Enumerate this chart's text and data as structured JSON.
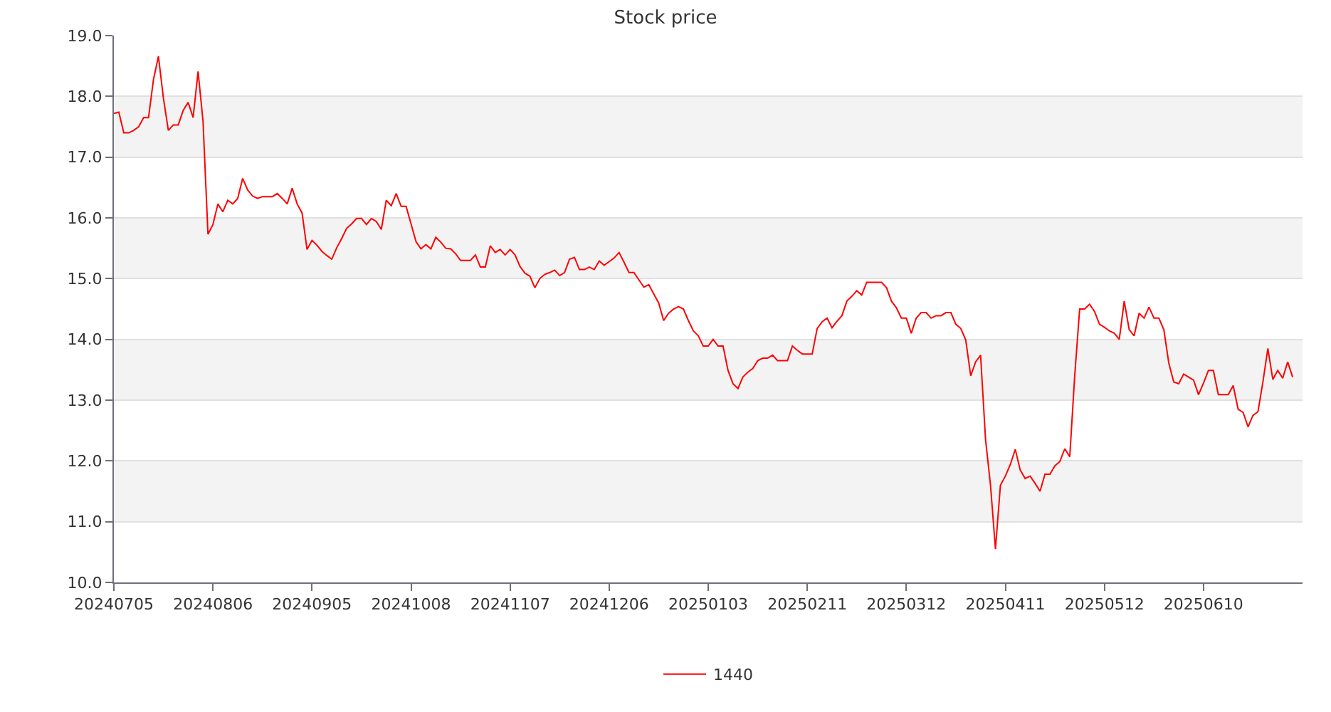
{
  "chart_data": {
    "type": "line",
    "title": "Stock price",
    "categories": [
      "20240705",
      null,
      null,
      null,
      null,
      null,
      null,
      null,
      null,
      null,
      null,
      null,
      null,
      null,
      null,
      null,
      null,
      null,
      null,
      null,
      "20240806",
      null,
      null,
      null,
      null,
      null,
      null,
      null,
      null,
      null,
      null,
      null,
      null,
      null,
      null,
      null,
      null,
      null,
      null,
      null,
      "20240905",
      null,
      null,
      null,
      null,
      null,
      null,
      null,
      null,
      null,
      null,
      null,
      null,
      null,
      null,
      null,
      null,
      null,
      null,
      null,
      "20241008",
      null,
      null,
      null,
      null,
      null,
      null,
      null,
      null,
      null,
      null,
      null,
      null,
      null,
      null,
      null,
      null,
      null,
      null,
      null,
      "20241107",
      null,
      null,
      null,
      null,
      null,
      null,
      null,
      null,
      null,
      null,
      null,
      null,
      null,
      null,
      null,
      null,
      null,
      null,
      null,
      "20241206",
      null,
      null,
      null,
      null,
      null,
      null,
      null,
      null,
      null,
      null,
      null,
      null,
      null,
      null,
      null,
      null,
      null,
      null,
      null,
      "20250103",
      null,
      null,
      null,
      null,
      null,
      null,
      null,
      null,
      null,
      null,
      null,
      null,
      null,
      null,
      null,
      null,
      null,
      null,
      null,
      "20250211",
      null,
      null,
      null,
      null,
      null,
      null,
      null,
      null,
      null,
      null,
      null,
      null,
      null,
      null,
      null,
      null,
      null,
      null,
      null,
      "20250312",
      null,
      null,
      null,
      null,
      null,
      null,
      null,
      null,
      null,
      null,
      null,
      null,
      null,
      null,
      null,
      null,
      null,
      null,
      null,
      "20250411",
      null,
      null,
      null,
      null,
      null,
      null,
      null,
      null,
      null,
      null,
      null,
      null,
      null,
      null,
      null,
      null,
      null,
      null,
      null,
      "20250512",
      null,
      null,
      null,
      null,
      null,
      null,
      null,
      null,
      null,
      null,
      null,
      null,
      null,
      null,
      null,
      null,
      null,
      null,
      null,
      "20250610",
      null,
      null,
      null,
      null,
      null,
      null,
      null,
      null,
      null,
      null,
      null,
      null,
      null,
      null,
      null,
      null,
      null,
      null,
      null,
      null
    ],
    "series": [
      {
        "name": "1440",
        "color": "#ff0000",
        "values": [
          17.72,
          17.74,
          17.4,
          17.4,
          17.44,
          17.5,
          17.65,
          17.65,
          18.28,
          18.66,
          17.97,
          17.44,
          17.53,
          17.53,
          17.77,
          17.9,
          17.65,
          18.41,
          17.59,
          15.73,
          15.89,
          16.23,
          16.1,
          16.29,
          16.23,
          16.32,
          16.65,
          16.46,
          16.36,
          16.32,
          16.35,
          16.35,
          16.35,
          16.4,
          16.32,
          16.23,
          16.49,
          16.23,
          16.08,
          15.48,
          15.63,
          15.55,
          15.45,
          15.38,
          15.32,
          15.51,
          15.66,
          15.83,
          15.9,
          15.99,
          15.99,
          15.89,
          15.99,
          15.94,
          15.81,
          16.29,
          16.2,
          16.4,
          16.19,
          16.19,
          15.9,
          15.61,
          15.49,
          15.56,
          15.49,
          15.68,
          15.6,
          15.5,
          15.49,
          15.41,
          15.3,
          15.3,
          15.3,
          15.39,
          15.19,
          15.19,
          15.54,
          15.43,
          15.48,
          15.39,
          15.48,
          15.39,
          15.2,
          15.09,
          15.04,
          14.85,
          15.0,
          15.07,
          15.1,
          15.14,
          15.05,
          15.1,
          15.32,
          15.35,
          15.15,
          15.15,
          15.19,
          15.15,
          15.29,
          15.22,
          15.28,
          15.34,
          15.43,
          15.27,
          15.1,
          15.1,
          14.98,
          14.86,
          14.9,
          14.75,
          14.6,
          14.31,
          14.43,
          14.5,
          14.54,
          14.5,
          14.31,
          14.14,
          14.06,
          13.89,
          13.89,
          14.0,
          13.89,
          13.89,
          13.49,
          13.27,
          13.19,
          13.38,
          13.46,
          13.52,
          13.65,
          13.69,
          13.69,
          13.74,
          13.65,
          13.65,
          13.65,
          13.89,
          13.82,
          13.76,
          13.76,
          13.76,
          14.18,
          14.29,
          14.35,
          14.19,
          14.3,
          14.39,
          14.63,
          14.71,
          14.8,
          14.73,
          14.94,
          14.94,
          14.94,
          14.94,
          14.85,
          14.63,
          14.52,
          14.35,
          14.35,
          14.1,
          14.35,
          14.44,
          14.44,
          14.35,
          14.39,
          14.39,
          14.44,
          14.44,
          14.25,
          14.18,
          13.99,
          13.4,
          13.63,
          13.74,
          12.35,
          11.6,
          10.55,
          11.6,
          11.75,
          11.94,
          12.19,
          11.85,
          11.71,
          11.75,
          11.63,
          11.5,
          11.78,
          11.78,
          11.92,
          11.99,
          12.2,
          12.07,
          13.4,
          14.5,
          14.5,
          14.58,
          14.46,
          14.25,
          14.2,
          14.14,
          14.1,
          14.0,
          14.63,
          14.16,
          14.06,
          14.43,
          14.35,
          14.53,
          14.35,
          14.35,
          14.16,
          13.61,
          13.3,
          13.27,
          13.43,
          13.38,
          13.33,
          13.09,
          13.28,
          13.49,
          13.49,
          13.09,
          13.09,
          13.09,
          13.24,
          12.85,
          12.8,
          12.56,
          12.75,
          12.81,
          13.3,
          13.85,
          13.34,
          13.49,
          13.36,
          13.63,
          13.38,
          null,
          null
        ]
      }
    ],
    "ylim": [
      10,
      19
    ],
    "yticks": [
      {
        "value": 10,
        "label": "10.0"
      },
      {
        "value": 11,
        "label": "11.0"
      },
      {
        "value": 12,
        "label": "12.0"
      },
      {
        "value": 13,
        "label": "13.0"
      },
      {
        "value": 14,
        "label": "14.0"
      },
      {
        "value": 15,
        "label": "15.0"
      },
      {
        "value": 16,
        "label": "16.0"
      },
      {
        "value": 17,
        "label": "17.0"
      },
      {
        "value": 18,
        "label": "18.0"
      },
      {
        "value": 19,
        "label": "19.0"
      }
    ],
    "grid": "y",
    "legend": "bottom",
    "marker": "none",
    "line_style": "solid"
  }
}
